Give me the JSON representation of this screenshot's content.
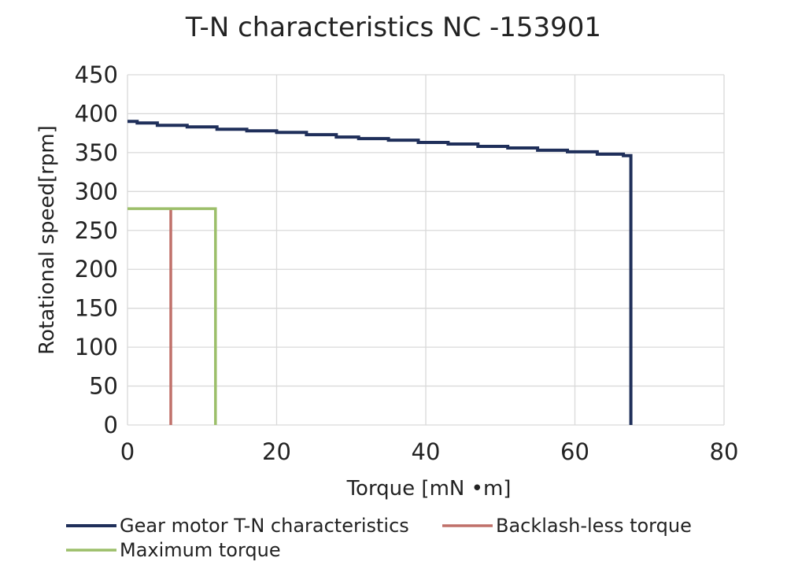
{
  "chart_data": {
    "type": "line",
    "title": "T-N characteristics NC -153901",
    "xlabel": "Torque [mN •m]",
    "ylabel": "Rotational speed[rpm]",
    "xlim": [
      0,
      80
    ],
    "ylim": [
      0,
      450
    ],
    "x_ticks": [
      "0",
      "20",
      "40",
      "60",
      "80"
    ],
    "y_ticks": [
      "0",
      "50",
      "100",
      "150",
      "200",
      "250",
      "300",
      "350",
      "400",
      "450"
    ],
    "grid": true,
    "legend_position": "bottom",
    "series": [
      {
        "name": "Gear motor T-N characteristics",
        "color": "#1f2f5a",
        "points": [
          [
            0,
            390
          ],
          [
            1.3,
            390
          ],
          [
            1.3,
            388
          ],
          [
            4,
            388
          ],
          [
            4,
            385
          ],
          [
            8,
            385
          ],
          [
            8,
            383
          ],
          [
            12,
            383
          ],
          [
            12,
            380
          ],
          [
            16,
            380
          ],
          [
            16,
            378
          ],
          [
            20,
            378
          ],
          [
            20,
            376
          ],
          [
            24,
            376
          ],
          [
            24,
            373
          ],
          [
            28,
            373
          ],
          [
            28,
            370
          ],
          [
            31,
            370
          ],
          [
            31,
            368
          ],
          [
            35,
            368
          ],
          [
            35,
            366
          ],
          [
            39,
            366
          ],
          [
            39,
            363
          ],
          [
            43,
            363
          ],
          [
            43,
            361
          ],
          [
            47,
            361
          ],
          [
            47,
            358
          ],
          [
            51,
            358
          ],
          [
            51,
            356
          ],
          [
            55,
            356
          ],
          [
            55,
            353
          ],
          [
            59,
            353
          ],
          [
            59,
            351
          ],
          [
            63,
            351
          ],
          [
            63,
            348
          ],
          [
            66.5,
            348
          ],
          [
            66.5,
            346
          ],
          [
            67.5,
            346
          ],
          [
            67.5,
            0
          ]
        ]
      },
      {
        "name": "Backlash-less torque",
        "color": "#c0706a",
        "points": [
          [
            5.8,
            278
          ],
          [
            5.8,
            0
          ]
        ]
      },
      {
        "name": "Maximum torque",
        "color": "#9cbf6a",
        "points": [
          [
            0,
            278
          ],
          [
            11.8,
            278
          ],
          [
            11.8,
            0
          ]
        ]
      }
    ]
  }
}
